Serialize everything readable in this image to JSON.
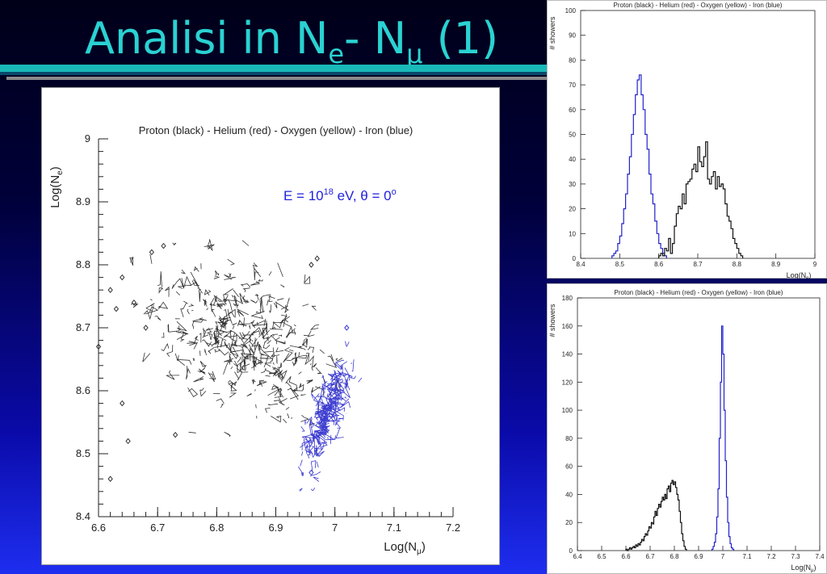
{
  "slide": {
    "title_main": "Analisi in N",
    "title_sub_e": "e",
    "title_mid": "- N",
    "title_sub_mu": "μ",
    "title_end": " (1)",
    "colors": {
      "title": "#2ad2d2",
      "accent_bar": "#19b9b9",
      "background_top": "#000018",
      "background_bottom": "#1e2ef0"
    }
  },
  "chart_data": [
    {
      "type": "scatter",
      "title": "Proton (black) - Helium (red) - Oxygen (yellow) - Iron (blue)",
      "annotation": {
        "text": "E = 10",
        "sup1": "18",
        "mid": " eV, θ = 0",
        "sup2": "o",
        "color": "#2222dd"
      },
      "xlabel": {
        "main": "Log(N",
        "sub": "μ",
        "end": ")"
      },
      "ylabel": {
        "main": "Log(N",
        "sub": "e",
        "end": ")"
      },
      "xlim": [
        6.6,
        7.2
      ],
      "ylim": [
        8.4,
        9.0
      ],
      "xticks": [
        "6.6",
        "6.7",
        "6.8",
        "6.9",
        "7",
        "7.1",
        "7.2"
      ],
      "yticks": [
        "8.4",
        "8.5",
        "8.6",
        "8.7",
        "8.8",
        "8.9",
        "9"
      ],
      "series": [
        {
          "color": "#333333",
          "clusters": [
            {
              "x": 6.83,
              "y": 8.69,
              "sx": 0.07,
              "sy": 0.055,
              "rho": -0.35,
              "n": 260
            },
            {
              "x": 6.88,
              "y": 8.66,
              "sx": 0.05,
              "sy": 0.05,
              "rho": -0.2,
              "n": 90
            }
          ],
          "outliers": [
            [
              6.62,
              8.46
            ],
            [
              6.65,
              8.52
            ],
            [
              6.64,
              8.58
            ],
            [
              6.6,
              8.67
            ],
            [
              6.63,
              8.73
            ],
            [
              6.62,
              8.76
            ],
            [
              6.68,
              8.7
            ],
            [
              6.66,
              8.74
            ],
            [
              6.64,
              8.78
            ],
            [
              6.73,
              8.53
            ],
            [
              6.71,
              8.83
            ],
            [
              6.69,
              8.82
            ],
            [
              6.96,
              8.8
            ],
            [
              6.97,
              8.81
            ]
          ]
        },
        {
          "color": "#3b3bd0",
          "clusters": [
            {
              "x": 6.985,
              "y": 8.56,
              "sx": 0.018,
              "sy": 0.04,
              "rho": 0.75,
              "n": 220
            }
          ],
          "outliers": [
            [
              6.96,
              8.47
            ],
            [
              7.02,
              8.7
            ]
          ]
        }
      ]
    },
    {
      "type": "histogram",
      "title": "Proton (black) - Helium (red) - Oxygen (yellow) - Iron (blue)",
      "xlabel": {
        "main": "Log(N",
        "sub": "e",
        "end": ")"
      },
      "ylabel": "# showers",
      "xlim": [
        8.4,
        9.0
      ],
      "ylim": [
        0,
        100
      ],
      "xticks": [
        "8.4",
        "8.5",
        "8.6",
        "8.7",
        "8.8",
        "8.9",
        "9"
      ],
      "yticks": [
        "0",
        "10",
        "20",
        "30",
        "40",
        "50",
        "60",
        "70",
        "80",
        "90",
        "100"
      ],
      "bin_width": 0.005,
      "series": [
        {
          "color": "#2222cc",
          "start": 8.48,
          "counts": [
            1,
            2,
            3,
            6,
            9,
            14,
            20,
            26,
            34,
            41,
            50,
            58,
            66,
            72,
            74,
            66,
            60,
            50,
            44,
            34,
            26,
            22,
            15,
            10,
            6,
            4,
            2,
            1
          ]
        },
        {
          "color": "#111111",
          "start": 8.6,
          "counts": [
            1,
            2,
            1,
            4,
            3,
            8,
            2,
            6,
            13,
            18,
            21,
            20,
            26,
            22,
            30,
            31,
            32,
            36,
            38,
            35,
            45,
            39,
            37,
            41,
            47,
            32,
            30,
            33,
            35,
            28,
            33,
            29,
            30,
            28,
            22,
            17,
            15,
            12,
            8,
            6,
            4,
            2,
            1
          ]
        }
      ]
    },
    {
      "type": "histogram",
      "title": "Proton (black) - Helium (red) - Oxygen (yellow) - Iron (blue)",
      "xlabel": {
        "main": "Log(N",
        "sub": "μ",
        "end": ")"
      },
      "ylabel": "# showers",
      "xlim": [
        6.4,
        7.4
      ],
      "ylim": [
        0,
        180
      ],
      "xticks": [
        "6.4",
        "6.5",
        "6.6",
        "6.7",
        "6.8",
        "6.9",
        "7",
        "7.1",
        "7.2",
        "7.3",
        "7.4"
      ],
      "yticks": [
        "0",
        "20",
        "40",
        "60",
        "80",
        "100",
        "120",
        "140",
        "160",
        "180"
      ],
      "bin_width": 0.005,
      "series": [
        {
          "color": "#111111",
          "start": 6.6,
          "counts": [
            1,
            0,
            1,
            2,
            1,
            2,
            3,
            2,
            4,
            3,
            5,
            4,
            6,
            8,
            7,
            10,
            12,
            11,
            14,
            17,
            16,
            20,
            19,
            24,
            28,
            25,
            30,
            33,
            31,
            35,
            38,
            36,
            40,
            37,
            44,
            46,
            42,
            48,
            50,
            47,
            49,
            45,
            40,
            36,
            28,
            20,
            12,
            7,
            3,
            1
          ]
        },
        {
          "color": "#2222cc",
          "start": 6.955,
          "counts": [
            1,
            3,
            6,
            12,
            24,
            44,
            80,
            120,
            160,
            140,
            100,
            64,
            38,
            20,
            10,
            5,
            2,
            1
          ]
        }
      ]
    }
  ]
}
